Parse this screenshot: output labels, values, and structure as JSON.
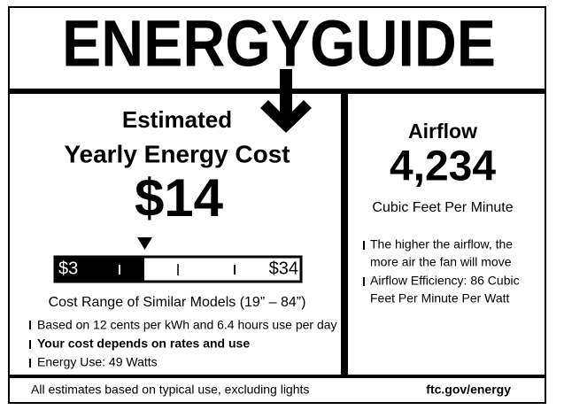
{
  "header": {
    "title": "ENERGYGUIDE"
  },
  "cost_panel": {
    "heading": [
      "Estimated",
      "Yearly Energy Cost"
    ],
    "cost": "$14",
    "range": {
      "low": "$3",
      "high": "$34",
      "caption": "Cost Range of Similar Models (19” – 84”)"
    },
    "notes": [
      "Based on 12 cents per kWh and 6.4 hours use per day",
      "Your cost depends on rates and use",
      "Energy Use: 49 Watts"
    ]
  },
  "airflow_panel": {
    "heading": "Airflow",
    "value": "4,234",
    "unit": "Cubic Feet Per Minute",
    "notes": [
      [
        "The higher the airflow, the",
        "more air the fan will move"
      ],
      [
        "Airflow Efficiency: 86 Cubic",
        "Feet Per Minute Per Watt"
      ]
    ]
  },
  "footer": {
    "note": "All estimates based on typical use, excluding lights",
    "link": "ftc.gov/energy"
  }
}
